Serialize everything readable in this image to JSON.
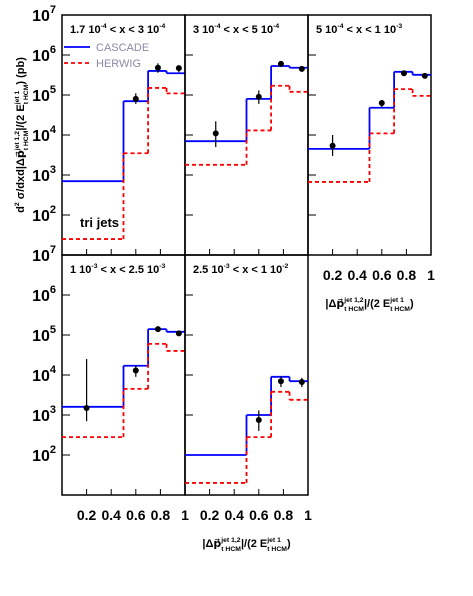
{
  "chart_data": {
    "type": "histogram-step",
    "y_label": [
      {
        "text": "d"
      },
      {
        "text": "2",
        "pos": "sup"
      },
      {
        "text": " σ/dxd|Δ"
      },
      {
        "text": "p⃗"
      },
      {
        "text": "jet 1,2",
        "pos": "sup"
      },
      {
        "text": "t HCM",
        "pos": "sub"
      },
      {
        "text": "|/(2 E"
      },
      {
        "text": "jet 1",
        "pos": "sup"
      },
      {
        "text": "t HCM",
        "pos": "sub"
      },
      {
        "text": ") (pb)"
      }
    ],
    "x_label": [
      {
        "text": "|Δ"
      },
      {
        "text": "p⃗"
      },
      {
        "text": "jet 1,2",
        "pos": "sup"
      },
      {
        "text": "t HCM",
        "pos": "sub"
      },
      {
        "text": "|/(2 E"
      },
      {
        "text": "jet 1",
        "pos": "sup"
      },
      {
        "text": "t HCM",
        "pos": "sub"
      },
      {
        "text": ")"
      }
    ],
    "log_y": true,
    "ylim": [
      10,
      10000000
    ],
    "yticks": [
      {
        "value": 100,
        "label": "10",
        "exponent": "2"
      },
      {
        "value": 1000,
        "label": "10",
        "exponent": "3"
      },
      {
        "value": 10000,
        "label": "10",
        "exponent": "4"
      },
      {
        "value": 100000,
        "label": "10",
        "exponent": "5"
      },
      {
        "value": 1000000,
        "label": "10",
        "exponent": "6"
      },
      {
        "value": 10000000,
        "label": "10",
        "exponent": "7"
      }
    ],
    "xlim": [
      0,
      1
    ],
    "xticks": [
      0.2,
      0.4,
      0.6,
      0.8,
      1
    ],
    "bins": [
      0,
      0.5,
      0.7,
      0.85,
      1
    ],
    "legend": "upper left",
    "annotation": "tri jets",
    "series": [
      {
        "name": "CASCADE",
        "color": "#0000ff",
        "dashed": false
      },
      {
        "name": "HERWIG",
        "color": "#ff0000",
        "dashed": true
      }
    ],
    "data_color": "#000000",
    "panels": [
      {
        "title": [
          {
            "text": "1.7 10"
          },
          {
            "text": "-4",
            "pos": "sup"
          },
          {
            "text": " < x < 3 10"
          },
          {
            "text": "-4",
            "pos": "sup"
          }
        ],
        "series_values": [
          [
            700,
            70000,
            400000,
            350000
          ],
          [
            25,
            3500,
            150000,
            110000
          ]
        ],
        "data": {
          "x": [
            0.6,
            0.78,
            0.95
          ],
          "values": [
            80000,
            480000,
            470000
          ],
          "lower": [
            60000,
            360000,
            370000
          ],
          "upper": [
            110000,
            620000,
            550000
          ]
        }
      },
      {
        "title": [
          {
            "text": "3 10"
          },
          {
            "text": "-4",
            "pos": "sup"
          },
          {
            "text": " < x < 5 10"
          },
          {
            "text": "-4",
            "pos": "sup"
          }
        ],
        "series_values": [
          [
            7000,
            80000,
            530000,
            480000
          ],
          [
            1800,
            13000,
            170000,
            120000
          ]
        ],
        "data": {
          "x": [
            0.25,
            0.6,
            0.78,
            0.95
          ],
          "values": [
            11000,
            90000,
            600000,
            450000
          ],
          "lower": [
            5000,
            60000,
            500000,
            380000
          ],
          "upper": [
            22000,
            130000,
            700000,
            520000
          ]
        }
      },
      {
        "title": [
          {
            "text": "5 10"
          },
          {
            "text": "-4",
            "pos": "sup"
          },
          {
            "text": " < x < 1 10"
          },
          {
            "text": "-3",
            "pos": "sup"
          }
        ],
        "series_values": [
          [
            4500,
            48000,
            380000,
            320000
          ],
          [
            670,
            11000,
            140000,
            95000
          ]
        ],
        "data": {
          "x": [
            0.2,
            0.6,
            0.78,
            0.95
          ],
          "values": [
            5400,
            63000,
            350000,
            300000
          ],
          "lower": [
            3000,
            50000,
            300000,
            260000
          ],
          "upper": [
            10000,
            75000,
            400000,
            340000
          ]
        }
      },
      {
        "title": [
          {
            "text": "1 10"
          },
          {
            "text": "-3",
            "pos": "sup"
          },
          {
            "text": " < x < 2.5 10"
          },
          {
            "text": "-3",
            "pos": "sup"
          }
        ],
        "series_values": [
          [
            1600,
            17000,
            140000,
            120000
          ],
          [
            280,
            4500,
            60000,
            40000
          ]
        ],
        "data": {
          "x": [
            0.2,
            0.6,
            0.78,
            0.95
          ],
          "values": [
            1500,
            13000,
            140000,
            110000
          ],
          "lower": [
            700,
            9000,
            120000,
            95000
          ],
          "upper": [
            25000,
            17000,
            160000,
            120000
          ]
        }
      },
      {
        "title": [
          {
            "text": "2.5 10"
          },
          {
            "text": "-3",
            "pos": "sup"
          },
          {
            "text": " < x < 1 10"
          },
          {
            "text": "-2",
            "pos": "sup"
          }
        ],
        "series_values": [
          [
            100,
            1000,
            9000,
            7000
          ],
          [
            20,
            280,
            3800,
            2400
          ]
        ],
        "data": {
          "x": [
            0.6,
            0.78,
            0.95
          ],
          "values": [
            750,
            7000,
            6700
          ],
          "lower": [
            400,
            5000,
            5000
          ],
          "upper": [
            1300,
            9000,
            8500
          ]
        }
      }
    ]
  }
}
